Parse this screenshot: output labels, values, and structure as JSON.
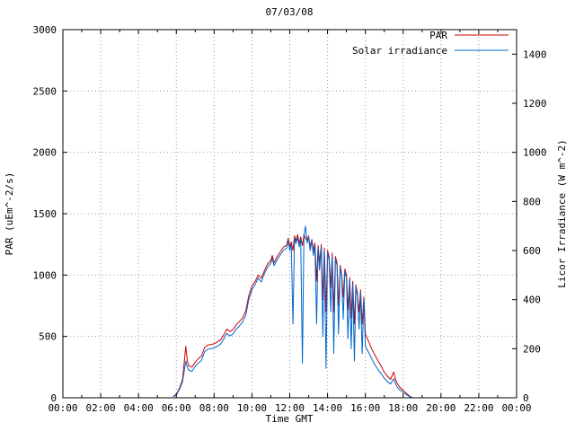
{
  "title": "07/03/08",
  "axes": {
    "x": {
      "label": "Time GMT",
      "range": [
        0,
        24
      ],
      "tick_hours": [
        0,
        2,
        4,
        6,
        8,
        10,
        12,
        14,
        16,
        18,
        20,
        22,
        24
      ],
      "tick_labels": [
        "00:00",
        "02:00",
        "04:00",
        "06:00",
        "08:00",
        "10:00",
        "12:00",
        "14:00",
        "16:00",
        "18:00",
        "20:00",
        "22:00",
        "00:00"
      ]
    },
    "y_left": {
      "label": "PAR (uEm^-2/s)",
      "range": [
        0,
        3000
      ],
      "ticks": [
        0,
        500,
        1000,
        1500,
        2000,
        2500,
        3000
      ]
    },
    "y_right": {
      "label": "Licor Irradiance (W m^-2)",
      "range": [
        0,
        1500
      ],
      "ticks": [
        0,
        200,
        400,
        600,
        800,
        1000,
        1200,
        1400
      ]
    }
  },
  "legend": [
    {
      "label": "PAR",
      "color": "#cc0000"
    },
    {
      "label": "Solar irradiance",
      "color": "#0066cc"
    }
  ],
  "colors": {
    "par": "#cc0000",
    "solar": "#0066cc",
    "grid": "#9a9a9a",
    "border": "#000000",
    "background": "#ffffff"
  },
  "chart_data": {
    "type": "line",
    "title": "07/03/08",
    "xlabel": "Time GMT",
    "ylabel_left": "PAR (uEm^-2/s)",
    "ylabel_right": "Licor Irradiance (W m^-2)",
    "xlim": [
      0,
      24
    ],
    "ylim_left": [
      0,
      3000
    ],
    "ylim_right": [
      0,
      1500
    ],
    "grid": true,
    "legend_position": "top-right",
    "x_hours": [
      5.83,
      6.0,
      6.17,
      6.33,
      6.5,
      6.58,
      6.67,
      6.83,
      7.0,
      7.17,
      7.33,
      7.5,
      7.67,
      7.83,
      8.0,
      8.17,
      8.33,
      8.5,
      8.67,
      8.83,
      9.0,
      9.17,
      9.33,
      9.5,
      9.67,
      9.83,
      10.0,
      10.17,
      10.33,
      10.5,
      10.67,
      10.83,
      11.0,
      11.08,
      11.17,
      11.33,
      11.5,
      11.67,
      11.83,
      11.92,
      12.0,
      12.08,
      12.17,
      12.25,
      12.33,
      12.42,
      12.5,
      12.58,
      12.67,
      12.75,
      12.83,
      12.92,
      13.0,
      13.08,
      13.17,
      13.25,
      13.33,
      13.42,
      13.5,
      13.58,
      13.67,
      13.75,
      13.83,
      13.92,
      14.0,
      14.08,
      14.17,
      14.25,
      14.33,
      14.42,
      14.5,
      14.58,
      14.67,
      14.75,
      14.83,
      14.92,
      15.0,
      15.08,
      15.17,
      15.25,
      15.33,
      15.42,
      15.5,
      15.58,
      15.67,
      15.75,
      15.83,
      15.92,
      16.0,
      16.17,
      16.33,
      16.5,
      16.67,
      16.83,
      17.0,
      17.17,
      17.33,
      17.5,
      17.58,
      17.67,
      17.83,
      18.0,
      18.17,
      18.33,
      18.5
    ],
    "series": [
      {
        "name": "PAR",
        "axis": "left",
        "color": "#cc0000",
        "units": "uEm^-2/s",
        "values": [
          10,
          30,
          80,
          150,
          420,
          300,
          260,
          250,
          290,
          320,
          340,
          410,
          430,
          435,
          440,
          455,
          470,
          510,
          560,
          540,
          555,
          595,
          620,
          650,
          705,
          830,
          910,
          950,
          1000,
          975,
          1040,
          1090,
          1120,
          1160,
          1100,
          1150,
          1190,
          1230,
          1240,
          1300,
          1230,
          1270,
          1200,
          1320,
          1280,
          1330,
          1260,
          1310,
          1240,
          1330,
          1300,
          1280,
          1320,
          1230,
          1290,
          1200,
          1260,
          950,
          1240,
          1100,
          1250,
          800,
          1220,
          700,
          1200,
          1150,
          900,
          1180,
          700,
          1150,
          1100,
          750,
          1080,
          1000,
          820,
          1050,
          1000,
          720,
          980,
          650,
          950,
          600,
          920,
          850,
          700,
          880,
          600,
          820,
          520,
          460,
          400,
          350,
          300,
          260,
          210,
          175,
          150,
          210,
          160,
          120,
          85,
          60,
          35,
          15,
          0
        ]
      },
      {
        "name": "Solar irradiance",
        "axis": "right",
        "color": "#0066cc",
        "units": "W m^-2",
        "values": [
          4,
          12,
          35,
          65,
          150,
          125,
          112,
          108,
          128,
          142,
          152,
          188,
          198,
          200,
          203,
          210,
          218,
          238,
          262,
          252,
          260,
          280,
          292,
          308,
          335,
          398,
          440,
          462,
          488,
          472,
          508,
          532,
          548,
          570,
          538,
          562,
          582,
          602,
          608,
          640,
          600,
          625,
          300,
          650,
          628,
          655,
          615,
          645,
          140,
          660,
          700,
          630,
          655,
          600,
          640,
          580,
          620,
          300,
          610,
          520,
          615,
          250,
          600,
          120,
          590,
          560,
          350,
          580,
          180,
          565,
          540,
          260,
          530,
          490,
          320,
          515,
          490,
          240,
          480,
          200,
          465,
          150,
          450,
          415,
          280,
          430,
          180,
          400,
          210,
          185,
          160,
          135,
          115,
          98,
          80,
          66,
          56,
          78,
          60,
          45,
          32,
          22,
          13,
          5,
          0
        ]
      }
    ]
  }
}
